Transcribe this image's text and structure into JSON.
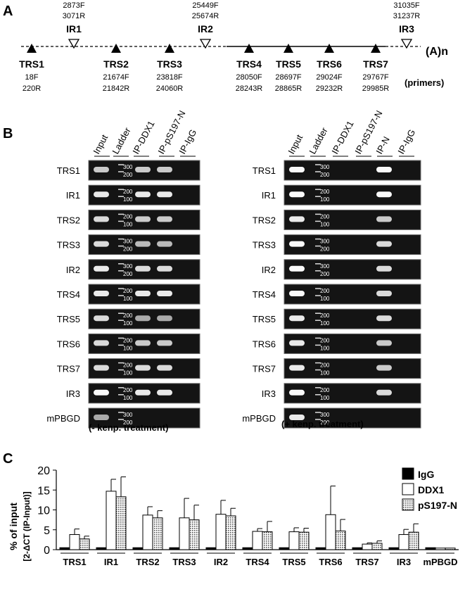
{
  "panel_a": {
    "label": "A",
    "polya": "(A)n",
    "primers_label": "(primers)",
    "trs": [
      {
        "name": "TRS1",
        "p1": "18F",
        "p2": "220R"
      },
      {
        "name": "TRS2",
        "p1": "21674F",
        "p2": "21842R"
      },
      {
        "name": "TRS3",
        "p1": "23818F",
        "p2": "24060R"
      },
      {
        "name": "TRS4",
        "p1": "28050F",
        "p2": "28243R"
      },
      {
        "name": "TRS5",
        "p1": "28697F",
        "p2": "28865R"
      },
      {
        "name": "TRS6",
        "p1": "29024F",
        "p2": "29232R"
      },
      {
        "name": "TRS7",
        "p1": "29767F",
        "p2": "29985R"
      }
    ],
    "ir": [
      {
        "name": "IR1",
        "p1": "2873F",
        "p2": "3071R"
      },
      {
        "name": "IR2",
        "p1": "25449F",
        "p2": "25674R"
      },
      {
        "name": "IR3",
        "p1": "31035F",
        "p2": "31237R"
      }
    ]
  },
  "panel_b": {
    "label": "B",
    "left": {
      "columns": [
        "Input",
        "Ladder",
        "IP-DDX1",
        "IP-pS197-N",
        "IP-IgG"
      ],
      "caption": "(- kenp. treatment)"
    },
    "right": {
      "columns": [
        "Input",
        "Ladder",
        "IP-DDX1",
        "IP-pS197-N",
        "IP-N",
        "IP-IgG"
      ],
      "caption": "(+ kenp. treatment)"
    },
    "rows": [
      "TRS1",
      "IR1",
      "TRS2",
      "TRS3",
      "IR2",
      "TRS4",
      "TRS5",
      "TRS6",
      "TRS7",
      "IR3",
      "mPBGD"
    ],
    "ladder_marks": [
      "300",
      "200",
      "100"
    ]
  },
  "panel_c": {
    "label": "C"
  },
  "chart_data": {
    "type": "bar",
    "ylabel": "% of input",
    "ylabel2": "[2-ΔCT (IP-Input)]",
    "ylim": [
      0,
      20
    ],
    "yticks": [
      0,
      5,
      10,
      15,
      20
    ],
    "categories": [
      "TRS1",
      "IR1",
      "TRS2",
      "TRS3",
      "IR2",
      "TRS4",
      "TRS5",
      "TRS6",
      "TRS7",
      "IR3",
      "mPBGD"
    ],
    "legend_position": "top-right",
    "series": [
      {
        "name": "IgG",
        "color": "#000000",
        "values": [
          0.5,
          0.5,
          0.5,
          0.5,
          0.5,
          0.5,
          0.5,
          0.5,
          0.5,
          0.5,
          0.5
        ],
        "errors": [
          0,
          0,
          0,
          0,
          0,
          0,
          0,
          0,
          0,
          0,
          0
        ]
      },
      {
        "name": "DDX1",
        "color": "#ffffff",
        "values": [
          3.8,
          14.7,
          8.7,
          8.0,
          8.9,
          4.6,
          4.5,
          8.8,
          1.4,
          3.8,
          0.4
        ],
        "errors": [
          1.4,
          3.0,
          2.1,
          4.9,
          3.5,
          0.7,
          1.0,
          7.2,
          0.3,
          1.3,
          0
        ]
      },
      {
        "name": "pS197-N",
        "color": "#aaaaaa",
        "values": [
          2.7,
          13.3,
          8.0,
          7.5,
          8.5,
          4.5,
          4.4,
          4.7,
          1.6,
          4.4,
          0.4
        ],
        "errors": [
          0.7,
          5.0,
          1.8,
          3.7,
          1.9,
          2.6,
          1.0,
          2.9,
          0.6,
          2.1,
          0
        ]
      }
    ]
  }
}
